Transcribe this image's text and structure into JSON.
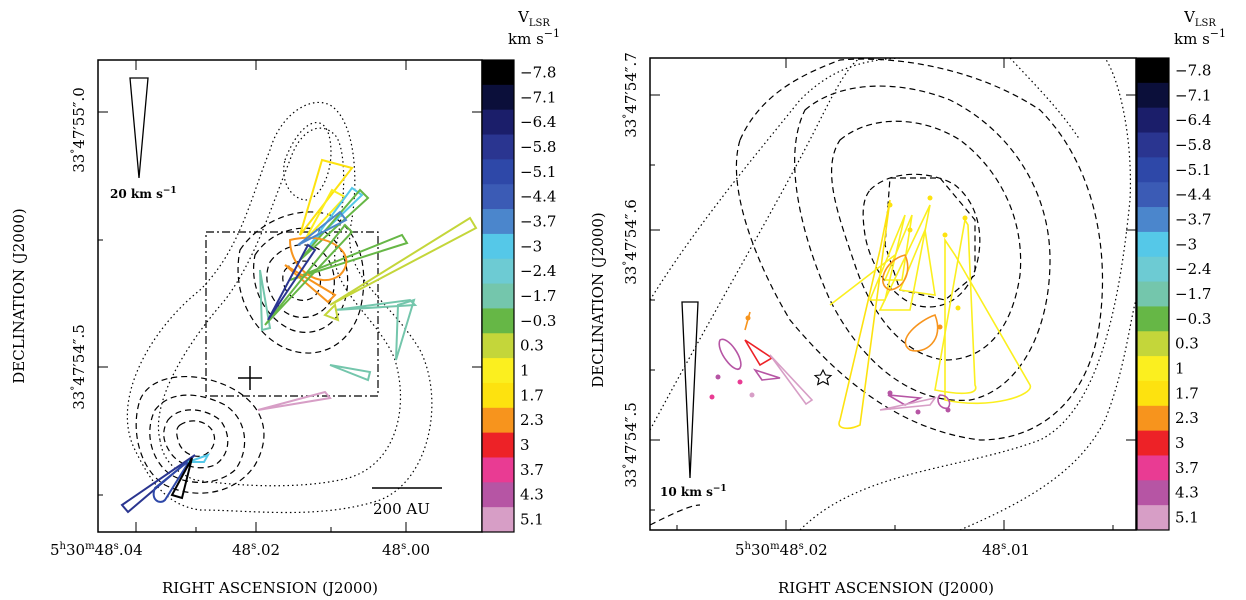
{
  "colorbar": {
    "title": "V",
    "title_sub": "LSR",
    "unit": "km s",
    "unit_exp": "−1",
    "levels": [
      {
        "label": "−7.8",
        "color": "#000000"
      },
      {
        "label": "−7.1",
        "color": "#0b0f3a"
      },
      {
        "label": "−6.4",
        "color": "#1b1e6a"
      },
      {
        "label": "−5.8",
        "color": "#2a3590"
      },
      {
        "label": "−5.1",
        "color": "#2e48a8"
      },
      {
        "label": "−4.4",
        "color": "#3b5bb5"
      },
      {
        "label": "−3.7",
        "color": "#4b86cc"
      },
      {
        "label": "−3",
        "color": "#55c8e8"
      },
      {
        "label": "−2.4",
        "color": "#6dcbd3"
      },
      {
        "label": "−1.7",
        "color": "#74c6ac"
      },
      {
        "label": "−0.3",
        "color": "#66b746"
      },
      {
        "label": "0.3",
        "color": "#c4d63a"
      },
      {
        "label": "1",
        "color": "#fbef1f"
      },
      {
        "label": "1.7",
        "color": "#fde20f"
      },
      {
        "label": "2.3",
        "color": "#f7941d"
      },
      {
        "label": "3",
        "color": "#ed2227"
      },
      {
        "label": "3.7",
        "color": "#e93b93"
      },
      {
        "label": "4.3",
        "color": "#b655a4"
      },
      {
        "label": "5.1",
        "color": "#d79ec6"
      }
    ]
  },
  "chart_data": [
    {
      "type": "scatter",
      "panel": "left",
      "xlabel": "RIGHT ASCENSION (J2000)",
      "ylabel": "DECLINATION (J2000)",
      "x_ticks": [
        {
          "h": "5",
          "m": "30",
          "s": "48",
          "frac": "04"
        },
        {
          "s": "48",
          "frac": "02"
        },
        {
          "s": "48",
          "frac": "00"
        }
      ],
      "y_ticks": [
        {
          "d": "33",
          "am": "47",
          "as": "55",
          "frac": "0"
        },
        {
          "d": "33",
          "am": "47",
          "as": "54",
          "frac": "5"
        }
      ],
      "scale_arrow_label": "20  km s",
      "scale_arrow_exp": "−1",
      "scale_bar_label": "200 AU"
    },
    {
      "type": "scatter",
      "panel": "right",
      "xlabel": "RIGHT ASCENSION (J2000)",
      "ylabel": "DECLINATION (J2000)",
      "x_ticks": [
        {
          "h": "5",
          "m": "30",
          "s": "48",
          "frac": "02"
        },
        {
          "s": "48",
          "frac": "01"
        }
      ],
      "y_ticks": [
        {
          "d": "33",
          "am": "47",
          "as": "54",
          "frac": "7"
        },
        {
          "d": "33",
          "am": "47",
          "as": "54",
          "frac": "6"
        },
        {
          "d": "33",
          "am": "47",
          "as": "54",
          "frac": "5"
        }
      ],
      "scale_arrow_label": "10   km s",
      "scale_arrow_exp": "−1"
    }
  ]
}
